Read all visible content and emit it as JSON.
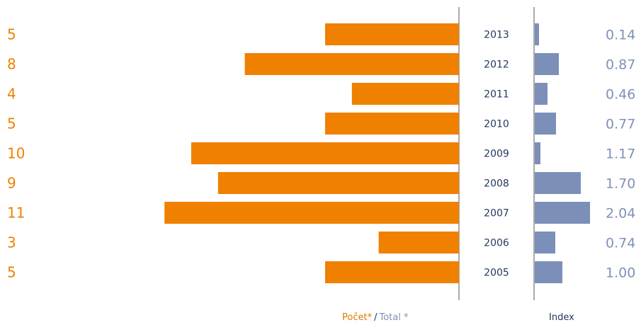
{
  "chart_data": {
    "type": "bar",
    "orientation": "horizontal",
    "categories": [
      "2013",
      "2012",
      "2011",
      "2010",
      "2009",
      "2008",
      "2007",
      "2006",
      "2005"
    ],
    "series": [
      {
        "name": "Počet* / Total *",
        "values": [
          5,
          8,
          4,
          5,
          10,
          9,
          11,
          3,
          5
        ],
        "color": "#f08000"
      },
      {
        "name": "Index",
        "values": [
          0.14,
          0.87,
          0.46,
          0.77,
          1.17,
          1.7,
          2.04,
          0.74,
          1.0
        ],
        "color": "#7b8fb9"
      }
    ],
    "count_labels": [
      "5",
      "8",
      "4",
      "5",
      "10",
      "9",
      "11",
      "3",
      "5"
    ],
    "index_labels": [
      "0.14",
      "0.87",
      "0.46",
      "0.77",
      "1.17",
      "1.70",
      "2.04",
      "0.74",
      "1.00"
    ],
    "footer": {
      "count_part1": "Počet*",
      "separator": "/",
      "count_part2": "Total *",
      "index": "Index"
    },
    "grid": false,
    "legend": "bottom"
  }
}
